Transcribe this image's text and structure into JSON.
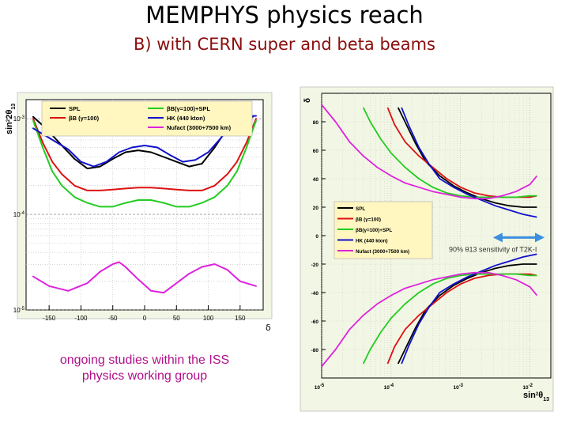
{
  "title": "MEMPHYS physics reach",
  "subtitle": "B)  with CERN super and beta beams",
  "note_lines": [
    "ongoing studies within the ISS",
    "physics working group"
  ],
  "colors": {
    "SPL": "#000000",
    "BB100": "#dd1111",
    "BBSPL": "#22cc22",
    "HK": "#1111cc",
    "Nufact": "#dd22dd",
    "frame_bg": "#f2f6e4",
    "legend_bg": "#fff6c0",
    "arrow": "#3b8fe0"
  },
  "chart_data": [
    {
      "type": "line",
      "ylabel_main": "sin",
      "ylabel_sup": "2",
      "ylabel_tail": "2θ",
      "ylabel_sub": "13",
      "xlabel": "δ",
      "xlim": [
        -180,
        180
      ],
      "ylim_log10": [
        -5,
        -2.8
      ],
      "x_ticks": [
        -150,
        -100,
        -50,
        0,
        50,
        100,
        150
      ],
      "y_ticks": [
        {
          "base": "10",
          "exp": "-3",
          "log10": -3
        },
        {
          "base": "10",
          "exp": "-4",
          "log10": -4
        },
        {
          "base": "10",
          "exp": "-5",
          "log10": -5
        }
      ],
      "grid": true,
      "legend_position": "top",
      "legend": [
        {
          "key": "SPL",
          "label": "SPL"
        },
        {
          "key": "BB100",
          "label": "βB (γ=100)"
        },
        {
          "key": "BBSPL",
          "label": "βB(γ=100)+SPL"
        },
        {
          "key": "HK",
          "label": "HK (440 kton)"
        },
        {
          "key": "Nufact",
          "label": "Nufact (3000+7500 km)"
        }
      ],
      "series": [
        {
          "key": "SPL",
          "x": [
            -175,
            -155,
            -130,
            -110,
            -90,
            -70,
            -50,
            -30,
            -10,
            10,
            30,
            50,
            70,
            90,
            110,
            130,
            150,
            170
          ],
          "log10y": [
            -2.98,
            -3.1,
            -3.28,
            -3.42,
            -3.52,
            -3.5,
            -3.42,
            -3.35,
            -3.33,
            -3.35,
            -3.4,
            -3.45,
            -3.5,
            -3.47,
            -3.3,
            -3.1,
            -2.97,
            -2.98
          ]
        },
        {
          "key": "BB100",
          "x": [
            -175,
            -160,
            -145,
            -130,
            -110,
            -90,
            -70,
            -50,
            -30,
            -10,
            10,
            30,
            50,
            70,
            90,
            110,
            130,
            145,
            160,
            175
          ],
          "log10y": [
            -3.0,
            -3.25,
            -3.45,
            -3.58,
            -3.7,
            -3.75,
            -3.75,
            -3.74,
            -3.73,
            -3.72,
            -3.72,
            -3.73,
            -3.74,
            -3.75,
            -3.75,
            -3.7,
            -3.58,
            -3.45,
            -3.25,
            -3.0
          ]
        },
        {
          "key": "BBSPL",
          "x": [
            -175,
            -160,
            -145,
            -130,
            -110,
            -90,
            -70,
            -50,
            -30,
            -10,
            10,
            30,
            50,
            70,
            90,
            110,
            130,
            145,
            160,
            175
          ],
          "log10y": [
            -3.02,
            -3.3,
            -3.55,
            -3.7,
            -3.82,
            -3.88,
            -3.92,
            -3.92,
            -3.88,
            -3.85,
            -3.85,
            -3.88,
            -3.92,
            -3.92,
            -3.88,
            -3.82,
            -3.7,
            -3.55,
            -3.3,
            -3.02
          ]
        },
        {
          "key": "HK",
          "x": [
            -175,
            -150,
            -120,
            -100,
            -80,
            -60,
            -40,
            -20,
            0,
            20,
            40,
            60,
            80,
            100,
            120,
            140,
            160,
            175
          ],
          "log10y": [
            -3.1,
            -3.2,
            -3.32,
            -3.45,
            -3.5,
            -3.45,
            -3.35,
            -3.3,
            -3.28,
            -3.3,
            -3.38,
            -3.45,
            -3.43,
            -3.35,
            -3.2,
            -3.02,
            -2.97,
            -2.97
          ]
        },
        {
          "key": "Nufact",
          "x": [
            -175,
            -150,
            -120,
            -90,
            -70,
            -50,
            -40,
            -30,
            -10,
            10,
            30,
            50,
            70,
            90,
            110,
            130,
            150,
            175
          ],
          "log10y": [
            -4.65,
            -4.75,
            -4.8,
            -4.72,
            -4.6,
            -4.52,
            -4.5,
            -4.55,
            -4.68,
            -4.8,
            -4.82,
            -4.72,
            -4.62,
            -4.55,
            -4.52,
            -4.58,
            -4.7,
            -4.75
          ]
        }
      ]
    },
    {
      "type": "line",
      "ylabel": "δ",
      "xlabel_main": "sin",
      "xlabel_sup": "2",
      "xlabel_tail": "θ",
      "xlabel_sub": "13",
      "xlim_log10": [
        -5,
        -1.7
      ],
      "ylim": [
        -100,
        100
      ],
      "y_ticks": [
        80,
        60,
        40,
        20,
        0,
        -20,
        -40,
        -60,
        -80
      ],
      "x_ticks": [
        {
          "base": "10",
          "exp": "-5",
          "log10": -5
        },
        {
          "base": "10",
          "exp": "-4",
          "log10": -4
        },
        {
          "base": "10",
          "exp": "-3",
          "log10": -3
        },
        {
          "base": "10",
          "exp": "-2",
          "log10": -2
        }
      ],
      "grid": true,
      "legend_position": "center-left",
      "legend": [
        {
          "key": "SPL",
          "label": "SPL"
        },
        {
          "key": "BB100",
          "label": "βB (γ=100)"
        },
        {
          "key": "BBSPL",
          "label": "βB(γ=100)+SPL"
        },
        {
          "key": "HK",
          "label": "HK (440 kton)"
        },
        {
          "key": "Nufact",
          "label": "Nufact (3000+7500 km)"
        }
      ],
      "annotation": "90% θ13 sensitivity of T2K-I",
      "annotation_range_log10": [
        -2.6,
        -1.7
      ],
      "annotation_y": 2,
      "series": [
        {
          "key": "SPL",
          "x": [
            -3.9,
            -3.8,
            -3.65,
            -3.5,
            -3.3,
            -3.1,
            -2.9,
            -2.7,
            -2.5,
            -2.3,
            -2.1,
            -1.9
          ],
          "y": [
            90,
            80,
            65,
            52,
            42,
            35,
            30,
            26,
            23,
            21,
            20,
            20
          ],
          "mirror": true
        },
        {
          "key": "BB100",
          "x": [
            -4.05,
            -3.95,
            -3.8,
            -3.6,
            -3.4,
            -3.2,
            -3.0,
            -2.8,
            -2.6,
            -2.4,
            -2.2,
            -2.0,
            -1.9
          ],
          "y": [
            90,
            78,
            66,
            56,
            48,
            40,
            34,
            30,
            28,
            27,
            27,
            27,
            28
          ],
          "mirror": true
        },
        {
          "key": "BBSPL",
          "x": [
            -4.4,
            -4.3,
            -4.15,
            -4.0,
            -3.8,
            -3.6,
            -3.4,
            -3.2,
            -3.0,
            -2.8,
            -2.6,
            -2.4,
            -2.2,
            -2.0,
            -1.9
          ],
          "y": [
            90,
            80,
            68,
            58,
            48,
            40,
            34,
            30,
            28,
            27,
            27,
            27,
            27,
            28,
            28
          ],
          "mirror": true
        },
        {
          "key": "HK",
          "x": [
            -3.85,
            -3.75,
            -3.6,
            -3.45,
            -3.3,
            -3.1,
            -2.9,
            -2.7,
            -2.5,
            -2.3,
            -2.1,
            -1.9
          ],
          "y": [
            90,
            78,
            62,
            50,
            40,
            34,
            29,
            25,
            21,
            18,
            15,
            13
          ],
          "mirror": true
        },
        {
          "key": "Nufact",
          "x": [
            -5.0,
            -4.8,
            -4.6,
            -4.4,
            -4.2,
            -4.0,
            -3.8,
            -3.6,
            -3.4,
            -3.2,
            -3.0,
            -2.8,
            -2.6,
            -2.4,
            -2.2,
            -2.0,
            -1.9
          ],
          "y": [
            92,
            80,
            66,
            56,
            48,
            42,
            37,
            34,
            31,
            29,
            27,
            26,
            26,
            28,
            31,
            36,
            42
          ],
          "mirror": true
        }
      ]
    }
  ]
}
